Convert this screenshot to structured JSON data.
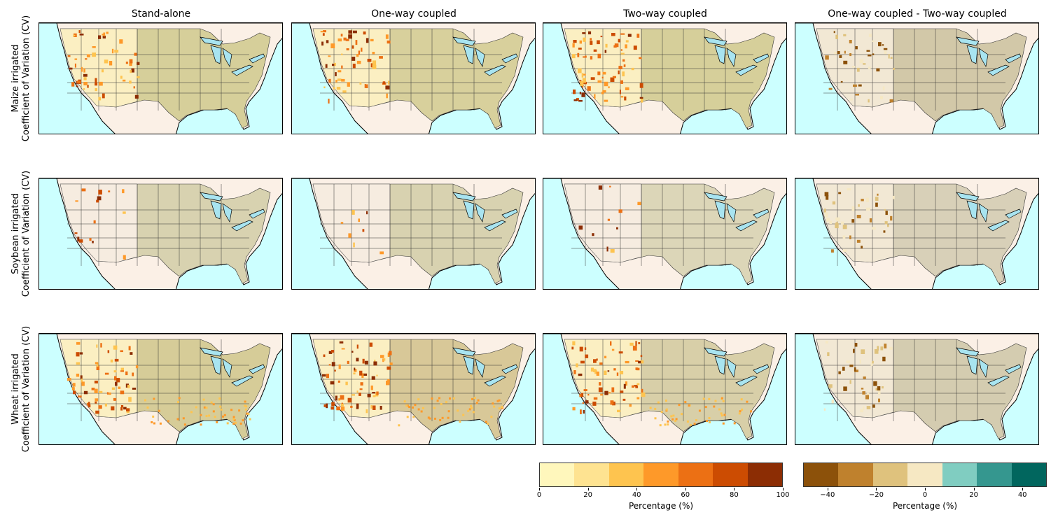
{
  "columns": [
    "Stand-alone",
    "One-way coupled",
    "Two-way coupled",
    "One-way coupled - Two-way coupled"
  ],
  "rows": [
    {
      "crop": "Maize irrigated",
      "metric": "Coefficient of Variation (CV)"
    },
    {
      "crop": "Soybean irrigated",
      "metric": "Coefficient of Variation (CV)"
    },
    {
      "crop": "Wheat irrigated",
      "metric": "Coefficient of Variation (CV)"
    }
  ],
  "colorbar_cv": {
    "label": "Percentage (%)",
    "range": [
      0,
      100
    ],
    "ticks": [
      "0",
      "20",
      "40",
      "60",
      "80",
      "100"
    ],
    "colors": [
      "#fff7bc",
      "#fee391",
      "#fec44f",
      "#fe9929",
      "#ec7014",
      "#cc4c02",
      "#8c2d04"
    ]
  },
  "colorbar_diff": {
    "label": "Percentage (%)",
    "range": [
      -50,
      50
    ],
    "ticks": [
      "−40",
      "−20",
      "0",
      "20",
      "40"
    ],
    "tick_values": [
      -40,
      -20,
      0,
      20,
      40
    ],
    "colors": [
      "#8c510a",
      "#bf812d",
      "#dfc27d",
      "#f6e8c3",
      "#80cdc1",
      "#35978f",
      "#01665e"
    ]
  },
  "map_colors": {
    "ocean": "#ccffff",
    "land": "#fbf0e6",
    "lakes": "#a8e4f0"
  }
}
